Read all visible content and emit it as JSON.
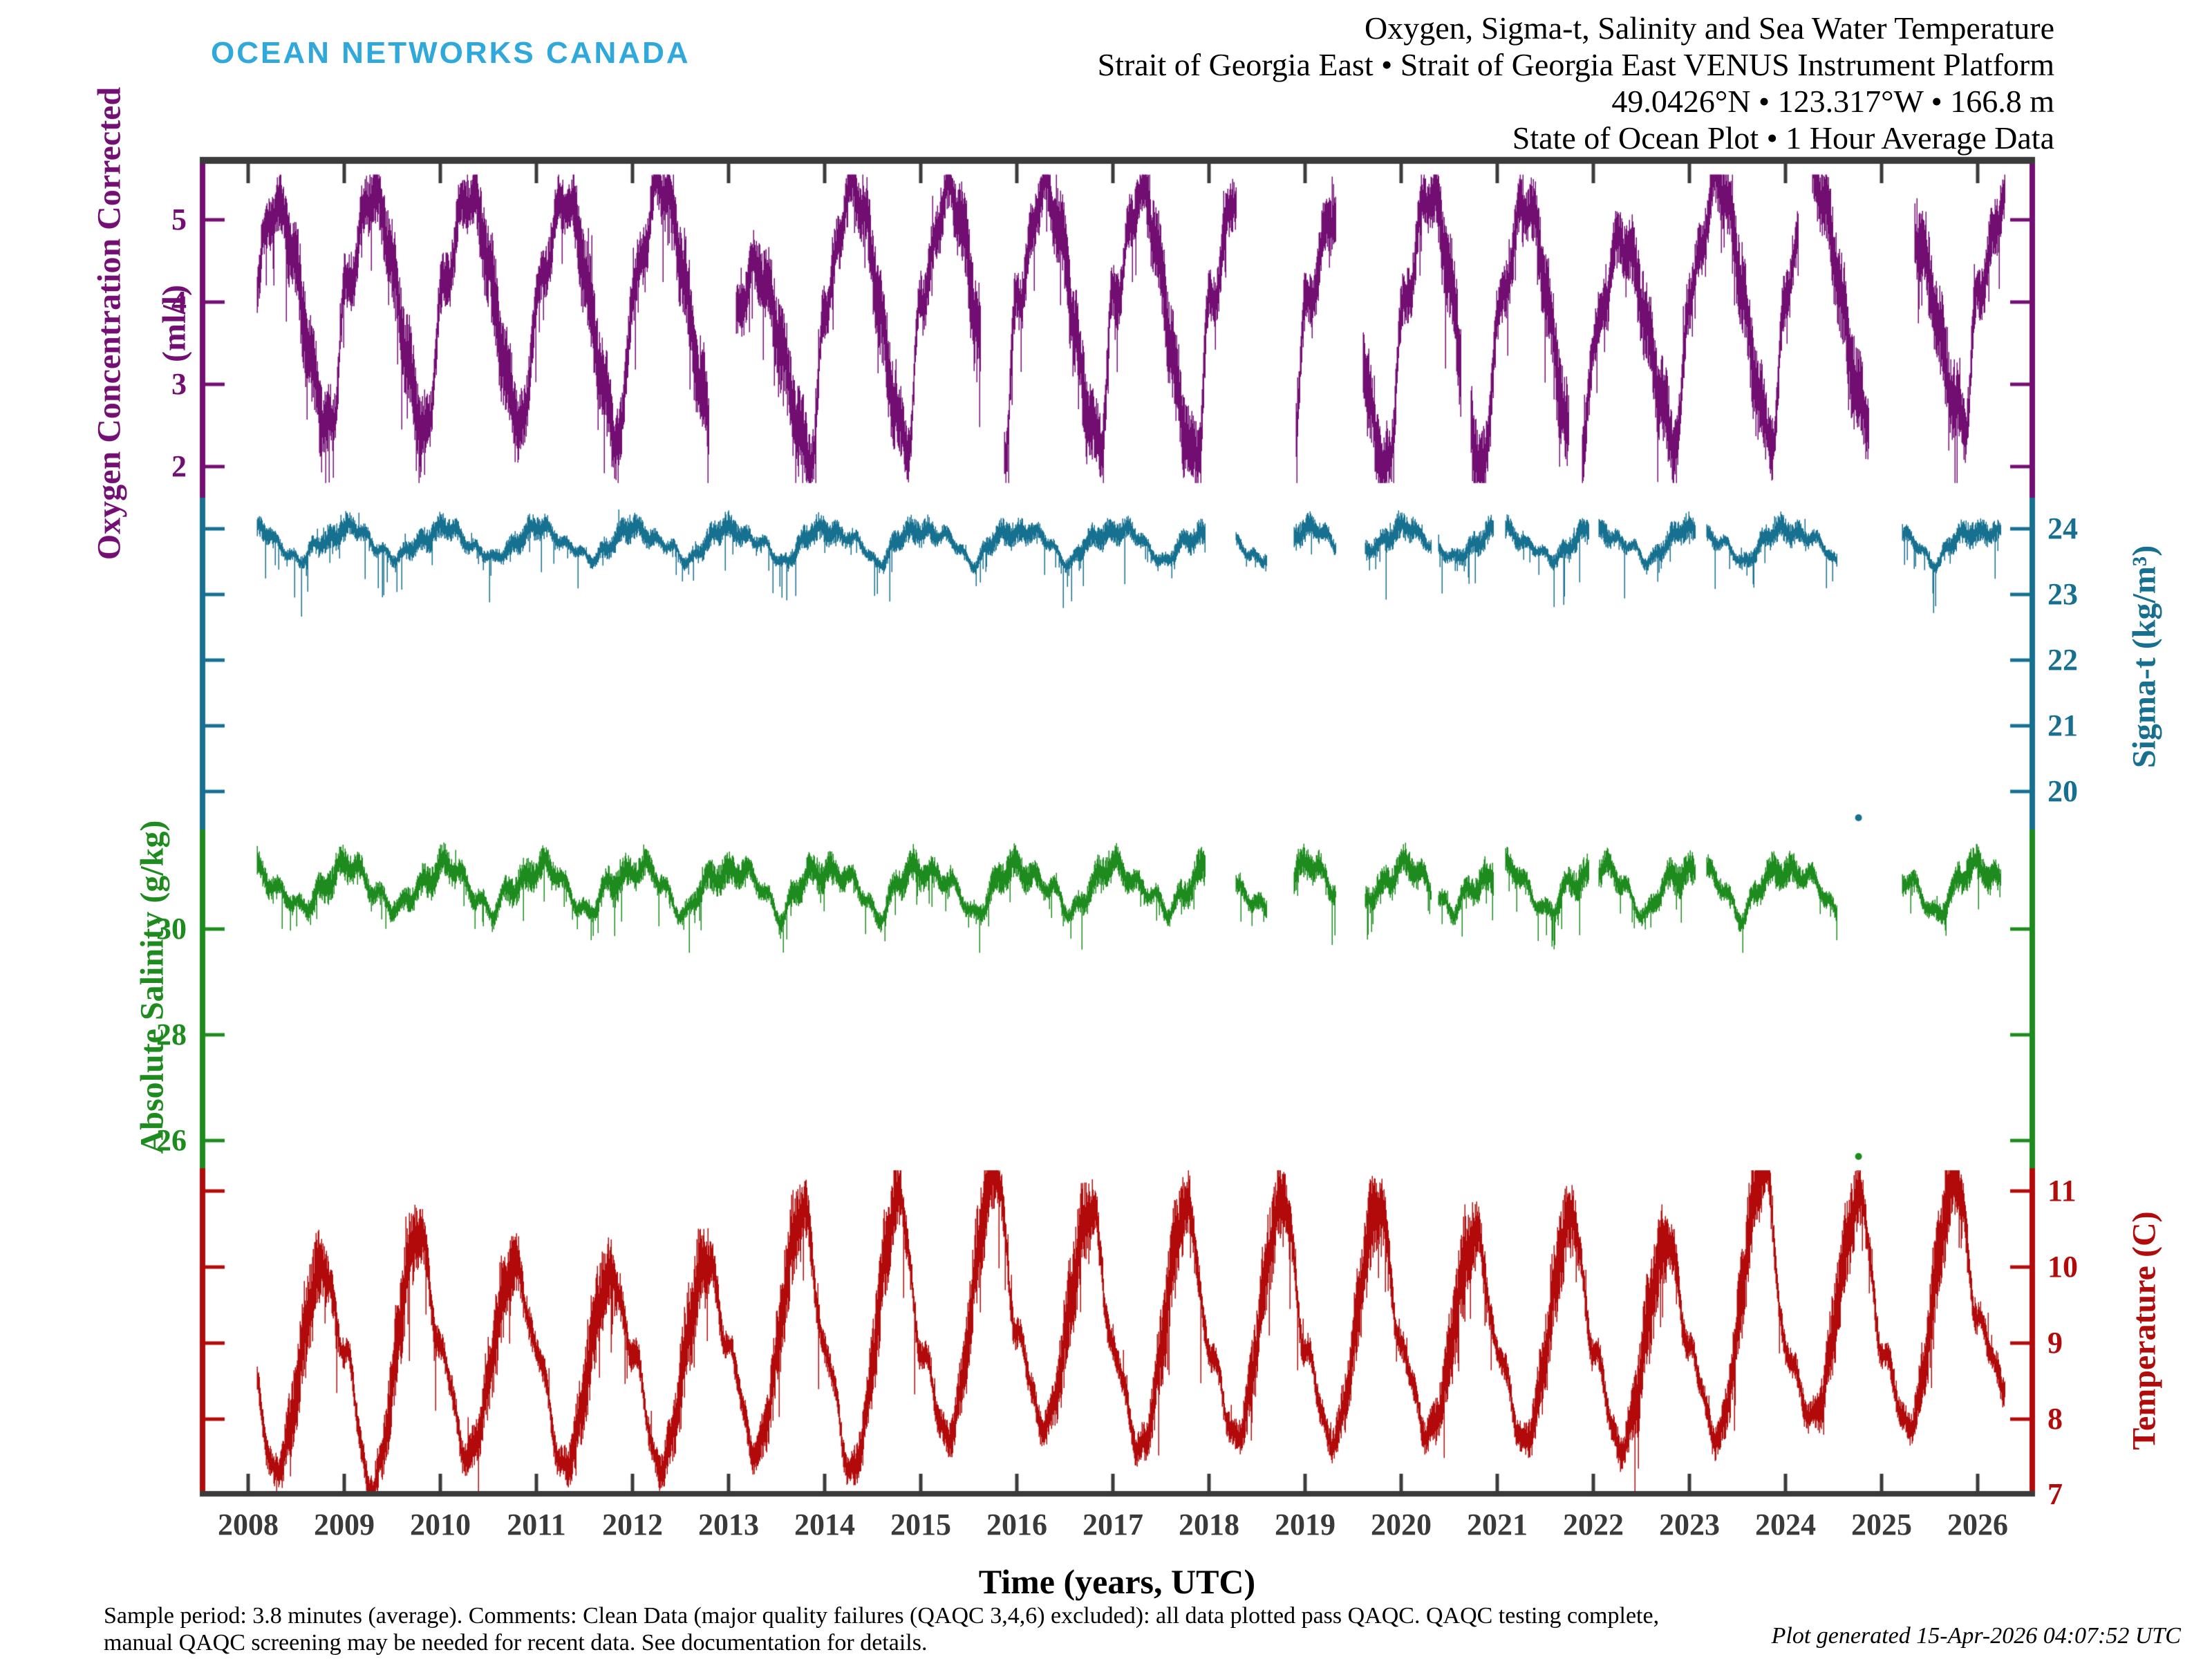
{
  "logo": {
    "text": "OCEAN NETWORKS CANADA"
  },
  "header": {
    "title_lines": [
      "Oxygen, Sigma-t, Salinity and Sea Water Temperature",
      "Strait of Georgia East • Strait of Georgia East VENUS Instrument Platform",
      "49.0426°N • 123.317°W • 166.8 m",
      "State of Ocean Plot • 1 Hour Average Data"
    ]
  },
  "footer": {
    "line1": "Sample period: 3.8 minutes (average). Comments: Clean Data (major quality failures (QAQC 3,4,6) excluded): all data plotted pass QAQC. QAQC testing complete,",
    "line2": "manual QAQC screening may be needed for recent data. See documentation for details.",
    "generated": "Plot generated 15-Apr-2026 04:07:52 UTC"
  },
  "colors": {
    "oxygen": "#730F72",
    "sigmat": "#17708F",
    "salinity": "#1E8B1E",
    "temperature": "#B20B0B",
    "frame": "#3B3B3B",
    "logo": "#2FA8DC",
    "year_labels": "#3A3A3A",
    "background": "#FFFFFF"
  },
  "chart_data": {
    "type": "line",
    "title": "State of Ocean Plot, 1 Hour Average Data",
    "grid": false,
    "legend": "none",
    "time_axis": {
      "label": "Time (years, UTC)",
      "tick_years": [
        2008,
        2009,
        2010,
        2011,
        2012,
        2013,
        2014,
        2015,
        2016,
        2017,
        2018,
        2019,
        2020,
        2021,
        2022,
        2023,
        2024,
        2025,
        2026
      ],
      "axis_start": 2007.53,
      "axis_end": 2026.57
    },
    "series": [
      {
        "id": "oxygen",
        "axis_title": "Oxygen Concentration Corrected",
        "axis_subtitle": "(ml/l)",
        "side": "left",
        "color_key": "oxygen",
        "tick_values": [
          5,
          4,
          3,
          2
        ],
        "tick_labels": [
          "5",
          "4",
          "3",
          "2"
        ],
        "value_range_shown": [
          1.62,
          5.72
        ],
        "typical_band": [
          2.3,
          5.3
        ],
        "peak_frac": 0.28,
        "min_frac": 0.87,
        "base_spread": 0.3,
        "extra_spread": 0.18,
        "data_start": 2008.09,
        "data_end": 2026.28,
        "annual": {
          "2008": {
            "peak": 5.15,
            "min": 2.45
          },
          "2009": {
            "peak": 5.3,
            "min": 2.4
          },
          "2010": {
            "peak": 5.3,
            "min": 2.5
          },
          "2011": {
            "peak": 5.25,
            "min": 2.35
          },
          "2012": {
            "peak": 5.45,
            "min": 2.4
          },
          "2013": {
            "peak": 4.4,
            "min": 2.15
          },
          "2014": {
            "peak": 5.4,
            "min": 2.3
          },
          "2015": {
            "peak": 5.35,
            "min": 2.2
          },
          "2016": {
            "peak": 5.4,
            "min": 2.3
          },
          "2017": {
            "peak": 5.3,
            "min": 2.1
          },
          "2018": {
            "peak": 5.35,
            "min": 2.3
          },
          "2019": {
            "peak": 5.05,
            "min": 1.95
          },
          "2020": {
            "peak": 5.3,
            "min": 2.0
          },
          "2021": {
            "peak": 5.2,
            "min": 1.9
          },
          "2022": {
            "peak": 4.75,
            "min": 2.35
          },
          "2023": {
            "peak": 5.45,
            "min": 2.35
          },
          "2024": {
            "peak": 5.5,
            "min": 2.6
          },
          "2025": {
            "peak": 4.95,
            "min": 2.55
          },
          "2026": {
            "peak": 5.25,
            "min": 2.6
          }
        },
        "gaps": [
          [
            2012.79,
            2013.07
          ],
          [
            2015.62,
            2015.86
          ],
          [
            2018.28,
            2018.9
          ],
          [
            2019.32,
            2019.6
          ],
          [
            2020.62,
            2020.72
          ],
          [
            2021.74,
            2021.88
          ],
          [
            2024.13,
            2024.27
          ],
          [
            2024.86,
            2025.34
          ]
        ],
        "outliers": []
      },
      {
        "id": "sigmat",
        "axis_title": "Sigma-t (kg/m³)",
        "side": "right",
        "color_key": "sigmat",
        "tick_values": [
          24,
          23,
          22,
          21,
          20
        ],
        "tick_labels": [
          "24",
          "23",
          "22",
          "21",
          "20"
        ],
        "value_range_shown": [
          19.42,
          24.47
        ],
        "typical_band": [
          23.4,
          24.1
        ],
        "mean": 23.82,
        "seasonal_amp": 0.17,
        "season_phase": 0.03,
        "base_spread": 0.13,
        "spike_max": 0.95,
        "data_start": 2008.09,
        "data_end": 2026.24,
        "gaps": [
          [
            2017.96,
            2018.27
          ],
          [
            2018.6,
            2018.88
          ],
          [
            2019.32,
            2019.62
          ],
          [
            2020.31,
            2020.38
          ],
          [
            2020.96,
            2021.08
          ],
          [
            2021.95,
            2022.05
          ],
          [
            2023.06,
            2023.17
          ],
          [
            2024.53,
            2025.21
          ]
        ],
        "outliers": [
          {
            "t": 2024.76,
            "value": 19.6
          }
        ]
      },
      {
        "id": "salinity",
        "axis_title": "Absolute Salinity (g/kg)",
        "side": "left",
        "color_key": "salinity",
        "tick_values": [
          30,
          28,
          26
        ],
        "tick_labels": [
          "30",
          "28",
          "26"
        ],
        "value_range_shown": [
          25.48,
          31.88
        ],
        "typical_band": [
          30.2,
          31.5
        ],
        "mean": 30.85,
        "seasonal_amp": 0.3,
        "season_phase": 0.03,
        "base_spread": 0.21,
        "spike_max": 1.05,
        "data_start": 2008.09,
        "data_end": 2026.24,
        "gaps": [
          [
            2017.96,
            2018.27
          ],
          [
            2018.6,
            2018.88
          ],
          [
            2019.32,
            2019.62
          ],
          [
            2020.31,
            2020.38
          ],
          [
            2020.96,
            2021.08
          ],
          [
            2021.95,
            2022.05
          ],
          [
            2023.06,
            2023.17
          ],
          [
            2024.53,
            2025.21
          ]
        ],
        "outliers": [
          {
            "t": 2024.76,
            "value": 25.7
          }
        ]
      },
      {
        "id": "temperature",
        "axis_title": "Temperature (C)",
        "side": "right",
        "color_key": "temperature",
        "tick_values": [
          11,
          10,
          9,
          8,
          7
        ],
        "tick_labels": [
          "11",
          "10",
          "9",
          "8",
          "7"
        ],
        "value_range_shown": [
          6.98,
          11.3
        ],
        "typical_band": [
          7.2,
          11.3
        ],
        "min_frac": 0.27,
        "peak_frac": 0.78,
        "jan_default": 8.9,
        "base_spread": 0.17,
        "extra_spread": 0.38,
        "data_start": 2008.09,
        "data_end": 2026.28,
        "annual": {
          "2008": {
            "min": 7.3,
            "peak": 10.0
          },
          "2009": {
            "min": 7.1,
            "peak": 10.45
          },
          "2010": {
            "min": 7.5,
            "peak": 10.0
          },
          "2011": {
            "min": 7.35,
            "peak": 9.9
          },
          "2012": {
            "min": 7.35,
            "peak": 10.1
          },
          "2013": {
            "min": 7.55,
            "peak": 10.75
          },
          "2014": {
            "min": 7.3,
            "peak": 10.9
          },
          "2015": {
            "min": 7.75,
            "peak": 11.25
          },
          "2016": {
            "min": 7.9,
            "peak": 10.75,
            "jan": 9.1
          },
          "2017": {
            "min": 7.6,
            "peak": 10.8
          },
          "2018": {
            "min": 7.75,
            "peak": 10.9
          },
          "2019": {
            "min": 7.7,
            "peak": 10.8
          },
          "2020": {
            "min": 7.8,
            "peak": 10.45
          },
          "2021": {
            "min": 7.7,
            "peak": 10.65
          },
          "2022": {
            "min": 7.6,
            "peak": 10.35
          },
          "2023": {
            "min": 7.75,
            "peak": 11.3
          },
          "2024": {
            "min": 8.0,
            "peak": 10.9
          },
          "2025": {
            "min": 7.9,
            "peak": 11.15
          },
          "2026": {
            "min": 8.45,
            "peak": 10.8,
            "jan": 9.3
          }
        },
        "gaps": [],
        "outliers": []
      }
    ]
  }
}
